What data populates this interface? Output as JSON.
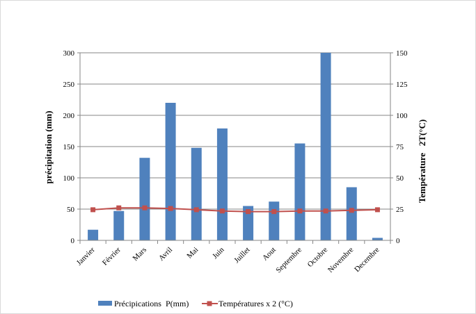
{
  "chart_data": {
    "type": "bar+line",
    "categories": [
      "Janvier",
      "Février",
      "Mars",
      "Avril",
      "Mai",
      "Juin",
      "Juillet",
      "Aout",
      "Septembre",
      "Octobre",
      "Novembre",
      "Decembre"
    ],
    "series": [
      {
        "name": "Précipications  P(mm)",
        "type": "bar",
        "axis": "left",
        "color": "#4f81bd",
        "values": [
          17,
          47,
          132,
          220,
          148,
          179,
          55,
          62,
          155,
          300,
          85,
          4
        ]
      },
      {
        "name": "Températures x 2 (°C)",
        "type": "line",
        "axis": "right",
        "color": "#c0504d",
        "values": [
          24.5,
          26,
          26,
          25.5,
          24.5,
          23.5,
          23,
          23,
          23.5,
          23.5,
          24,
          24.5
        ]
      }
    ],
    "y_left": {
      "label": "précipitation (mm)",
      "ylim": [
        0,
        300
      ],
      "ticks": [
        "0",
        "50",
        "100",
        "150",
        "200",
        "250",
        "300"
      ]
    },
    "y_right": {
      "label": "Température   2T(°C)",
      "ylim": [
        0,
        150
      ],
      "ticks": [
        "0",
        "25",
        "50",
        "75",
        "100",
        "125",
        "150"
      ]
    },
    "grid": true,
    "legend_position": "bottom"
  }
}
